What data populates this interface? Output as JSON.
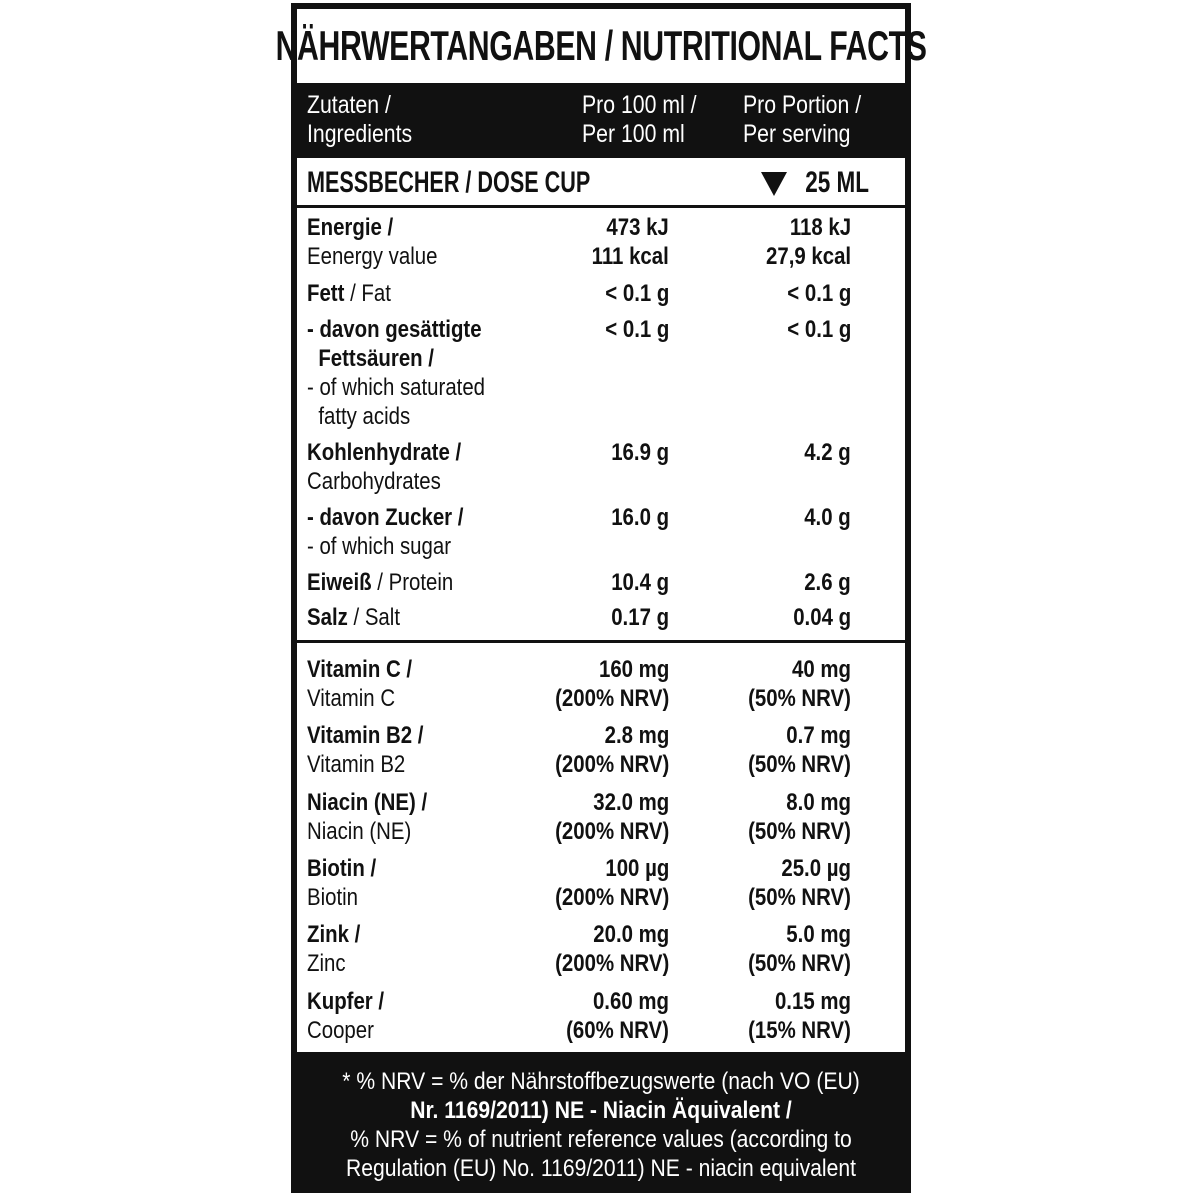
{
  "title": "NÄHRWERTANGABEN / NUTRITIONAL FACTS",
  "header": {
    "col1": [
      "Zutaten /",
      "Ingredients"
    ],
    "col2": [
      "Pro 100 ml /",
      "Per 100 ml"
    ],
    "col3": [
      "Pro Portion /",
      "Per serving"
    ]
  },
  "dose": {
    "label": "MESSBECHER / DOSE CUP",
    "icon": "cup-icon",
    "value": "25 ML"
  },
  "nutrients": [
    {
      "label": [
        [
          {
            "t": "Energie /",
            "b": true
          }
        ],
        [
          {
            "t": "Eenergy value",
            "b": false
          }
        ]
      ],
      "per100": [
        "473 kJ",
        "111 kcal"
      ],
      "serving": [
        "118 kJ",
        "27,9 kcal"
      ]
    },
    {
      "label": [
        [
          {
            "t": "Fett",
            "b": true
          },
          {
            "t": " / Fat",
            "b": false
          }
        ]
      ],
      "per100": [
        "< 0.1 g"
      ],
      "serving": [
        "< 0.1 g"
      ]
    },
    {
      "label": [
        [
          {
            "t": "- davon gesättigte",
            "b": true
          }
        ],
        [
          {
            "t": "  Fettsäuren /",
            "b": true
          }
        ],
        [
          {
            "t": "- of which saturated",
            "b": false
          }
        ],
        [
          {
            "t": "  fatty acids",
            "b": false
          }
        ]
      ],
      "per100": [
        "< 0.1 g"
      ],
      "serving": [
        "< 0.1 g"
      ]
    },
    {
      "label": [
        [
          {
            "t": "Kohlenhydrate /",
            "b": true
          }
        ],
        [
          {
            "t": "Carbohydrates",
            "b": false
          }
        ]
      ],
      "per100": [
        "16.9 g"
      ],
      "serving": [
        "4.2 g"
      ]
    },
    {
      "label": [
        [
          {
            "t": "- davon Zucker /",
            "b": true
          }
        ],
        [
          {
            "t": "- of which sugar",
            "b": false
          }
        ]
      ],
      "per100": [
        "16.0 g"
      ],
      "serving": [
        "4.0 g"
      ]
    },
    {
      "label": [
        [
          {
            "t": "Eiweiß",
            "b": true
          },
          {
            "t": " / Protein",
            "b": false
          }
        ]
      ],
      "per100": [
        "10.4 g"
      ],
      "serving": [
        "2.6 g"
      ]
    },
    {
      "label": [
        [
          {
            "t": "Salz",
            "b": true
          },
          {
            "t": " / Salt",
            "b": false
          }
        ]
      ],
      "per100": [
        "0.17 g"
      ],
      "serving": [
        "0.04 g"
      ]
    }
  ],
  "vitamins": [
    {
      "label": [
        [
          {
            "t": "Vitamin C /",
            "b": true
          }
        ],
        [
          {
            "t": "Vitamin C",
            "b": false
          }
        ]
      ],
      "per100": [
        "160 mg",
        "(200% NRV)"
      ],
      "serving": [
        "40 mg",
        "(50% NRV)"
      ]
    },
    {
      "label": [
        [
          {
            "t": "Vitamin B2 /",
            "b": true
          }
        ],
        [
          {
            "t": "Vitamin B2",
            "b": false
          }
        ]
      ],
      "per100": [
        "2.8 mg",
        "(200% NRV)"
      ],
      "serving": [
        "0.7 mg",
        "(50% NRV)"
      ]
    },
    {
      "label": [
        [
          {
            "t": "Niacin (NE) /",
            "b": true
          }
        ],
        [
          {
            "t": "Niacin (NE)",
            "b": false
          }
        ]
      ],
      "per100": [
        "32.0 mg",
        "(200% NRV)"
      ],
      "serving": [
        "8.0 mg",
        "(50% NRV)"
      ]
    },
    {
      "label": [
        [
          {
            "t": "Biotin /",
            "b": true
          }
        ],
        [
          {
            "t": "Biotin",
            "b": false
          }
        ]
      ],
      "per100": [
        "100 µg",
        "(200% NRV)"
      ],
      "serving": [
        "25.0 µg",
        "(50% NRV)"
      ]
    },
    {
      "label": [
        [
          {
            "t": "Zink /",
            "b": true
          }
        ],
        [
          {
            "t": "Zinc",
            "b": false
          }
        ]
      ],
      "per100": [
        "20.0 mg",
        "(200% NRV)"
      ],
      "serving": [
        "5.0 mg",
        "(50% NRV)"
      ]
    },
    {
      "label": [
        [
          {
            "t": "Kupfer /",
            "b": true
          }
        ],
        [
          {
            "t": "Cooper",
            "b": false
          }
        ]
      ],
      "per100": [
        "0.60 mg",
        "(60% NRV)"
      ],
      "serving": [
        "0.15 mg",
        "(15% NRV)"
      ]
    }
  ],
  "footer": [
    "* % NRV = % der Nährstoffbezugswerte (nach VO (EU)",
    "Nr. 1169/2011) NE - Niacin Äquivalent /",
    "% NRV = % of nutrient reference values (according to",
    "Regulation (EU) No. 1169/2011)  NE - niacin equivalent"
  ]
}
